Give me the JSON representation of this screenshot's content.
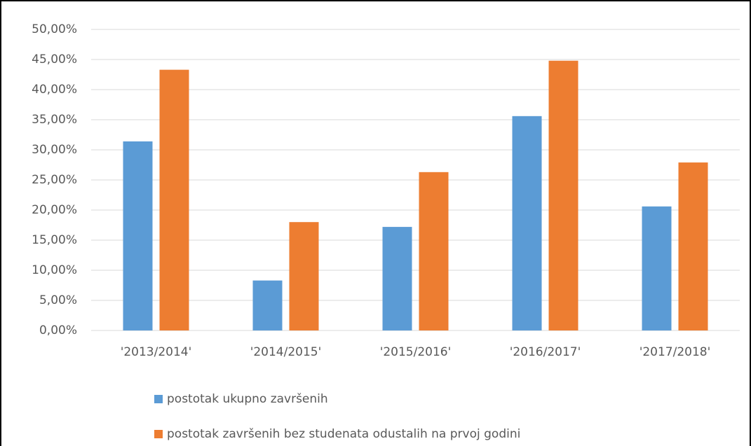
{
  "chart_data": {
    "type": "bar",
    "categories": [
      "'2013/2014'",
      "'2014/2015'",
      "'2015/2016'",
      "'2016/2017'",
      "'2017/2018'"
    ],
    "series": [
      {
        "name": "postotak ukupno završenih",
        "color": "#5b9bd5",
        "values": [
          31.4,
          8.3,
          17.2,
          35.6,
          20.6
        ]
      },
      {
        "name": "postotak završenih bez studenata odustalih na prvoj godini",
        "color": "#ed7d31",
        "values": [
          43.3,
          18.0,
          26.3,
          44.8,
          27.9
        ]
      }
    ],
    "ylim": [
      0,
      50
    ],
    "yticks": [
      {
        "value": 0,
        "label": "0,00%"
      },
      {
        "value": 5,
        "label": "5,00%"
      },
      {
        "value": 10,
        "label": "10,00%"
      },
      {
        "value": 15,
        "label": "15,00%"
      },
      {
        "value": 20,
        "label": "20,00%"
      },
      {
        "value": 25,
        "label": "25,00%"
      },
      {
        "value": 30,
        "label": "30,00%"
      },
      {
        "value": 35,
        "label": "35,00%"
      },
      {
        "value": 40,
        "label": "40,00%"
      },
      {
        "value": 45,
        "label": "45,00%"
      },
      {
        "value": 50,
        "label": "50,00%"
      }
    ],
    "grid": true,
    "legend": "bottom"
  }
}
